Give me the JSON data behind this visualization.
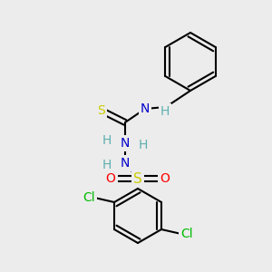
{
  "bg_color": "#ececec",
  "bond_color": "#000000",
  "atom_colors": {
    "N": "#0000cc",
    "S_thio": "#cccc00",
    "S_sulfonyl": "#cccc00",
    "O": "#ff0000",
    "Cl": "#00bb00",
    "H": "#5fafaf",
    "C": "#000000"
  }
}
